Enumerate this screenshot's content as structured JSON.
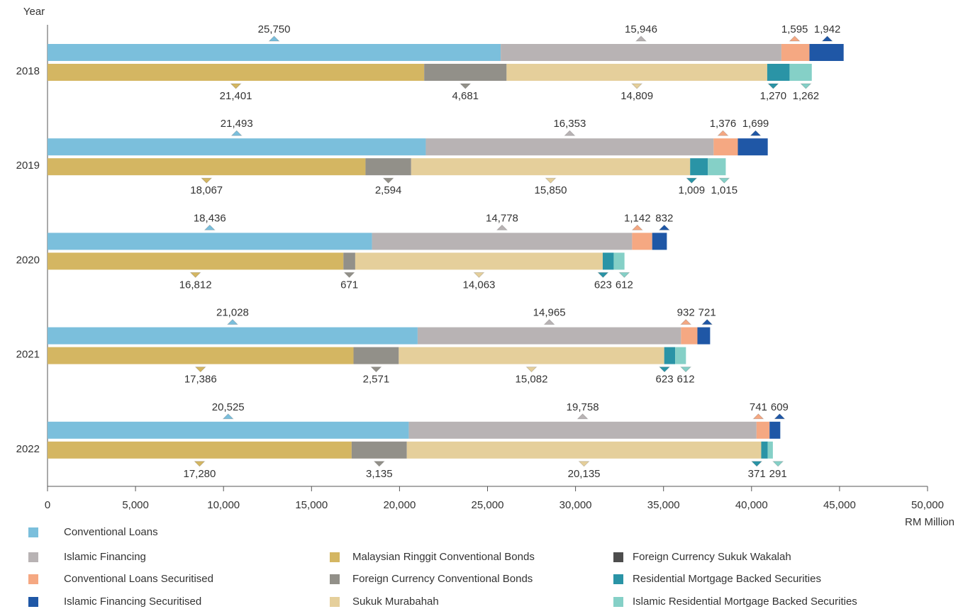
{
  "chart_data": {
    "type": "stacked-bar-horizontal-paired",
    "y_label": "Year",
    "x_label": "RM Million",
    "categories": [
      "2018",
      "2019",
      "2020",
      "2021",
      "2022"
    ],
    "xlim": [
      0,
      50000
    ],
    "xticks": [
      0,
      {
        "value": 5000,
        "label": "5,000"
      },
      {
        "value": 10000,
        "label": "10,000"
      },
      {
        "value": 15000,
        "label": "15,000"
      },
      {
        "value": 20000,
        "label": "20,000"
      },
      {
        "value": 25000,
        "label": "25,000"
      },
      {
        "value": 30000,
        "label": "30,000"
      },
      {
        "value": 35000,
        "label": "35,000"
      },
      {
        "value": 40000,
        "label": "40,000"
      },
      {
        "value": 45000,
        "label": "45,000"
      },
      {
        "value": 50000,
        "label": "50,000"
      }
    ],
    "series": [
      {
        "name": "Conventional Loans",
        "color": "#7bbfdc",
        "stack": "top",
        "values": [
          25750,
          21493,
          18436,
          21028,
          20525
        ],
        "value_labels": [
          "25,750",
          "21,493",
          "18,436",
          "21,028",
          "20,525"
        ]
      },
      {
        "name": "Islamic Financing",
        "color": "#b8b3b4",
        "stack": "top",
        "values": [
          15946,
          16353,
          14778,
          14965,
          19758
        ],
        "value_labels": [
          "15,946",
          "16,353",
          "14,778",
          "14,965",
          "19,758"
        ]
      },
      {
        "name": "Conventional Loans Securitised",
        "color": "#f5a882",
        "stack": "top",
        "values": [
          1595,
          1376,
          1142,
          932,
          741
        ],
        "value_labels": [
          "1,595",
          "1,376",
          "1,142",
          "932",
          "741"
        ]
      },
      {
        "name": "Islamic Financing Securitised",
        "color": "#1f57a6",
        "stack": "top",
        "values": [
          1942,
          1699,
          832,
          721,
          609
        ],
        "value_labels": [
          "1,942",
          "1,699",
          "832",
          "721",
          "609"
        ]
      },
      {
        "name": "Malaysian Ringgit Conventional Bonds",
        "color": "#d4b662",
        "stack": "bottom",
        "values": [
          21401,
          18067,
          16812,
          17386,
          17280
        ],
        "value_labels": [
          "21,401",
          "18,067",
          "16,812",
          "17,386",
          "17,280"
        ]
      },
      {
        "name": "Foreign Currency Conventional Bonds",
        "color": "#929089",
        "stack": "bottom",
        "values": [
          4681,
          2594,
          671,
          2571,
          3135
        ],
        "value_labels": [
          "4,681",
          "2,594",
          "671",
          "2,571",
          "3,135"
        ]
      },
      {
        "name": "Sukuk Murabahah",
        "color": "#e5cf9b",
        "stack": "bottom",
        "values": [
          14809,
          15850,
          14063,
          15082,
          20135
        ],
        "value_labels": [
          "14,809",
          "15,850",
          "14,063",
          "15,082",
          "20,135"
        ]
      },
      {
        "name": "Foreign Currency Sukuk Wakalah",
        "color": "#4d4d4d",
        "stack": "bottom",
        "values": [
          null,
          null,
          null,
          null,
          null
        ]
      },
      {
        "name": "Residential Mortgage Backed Securities",
        "color": "#2a94a6",
        "stack": "bottom",
        "values": [
          1270,
          1009,
          623,
          623,
          371
        ],
        "value_labels": [
          "1,270",
          "1,009",
          "623",
          "623",
          "371"
        ]
      },
      {
        "name": "Islamic Residential Mortgage Backed Securities",
        "color": "#85d0c7",
        "stack": "bottom",
        "values": [
          1262,
          1015,
          612,
          612,
          291
        ],
        "value_labels": [
          "1,262",
          "1,015",
          "612",
          "612",
          "291"
        ]
      }
    ]
  }
}
